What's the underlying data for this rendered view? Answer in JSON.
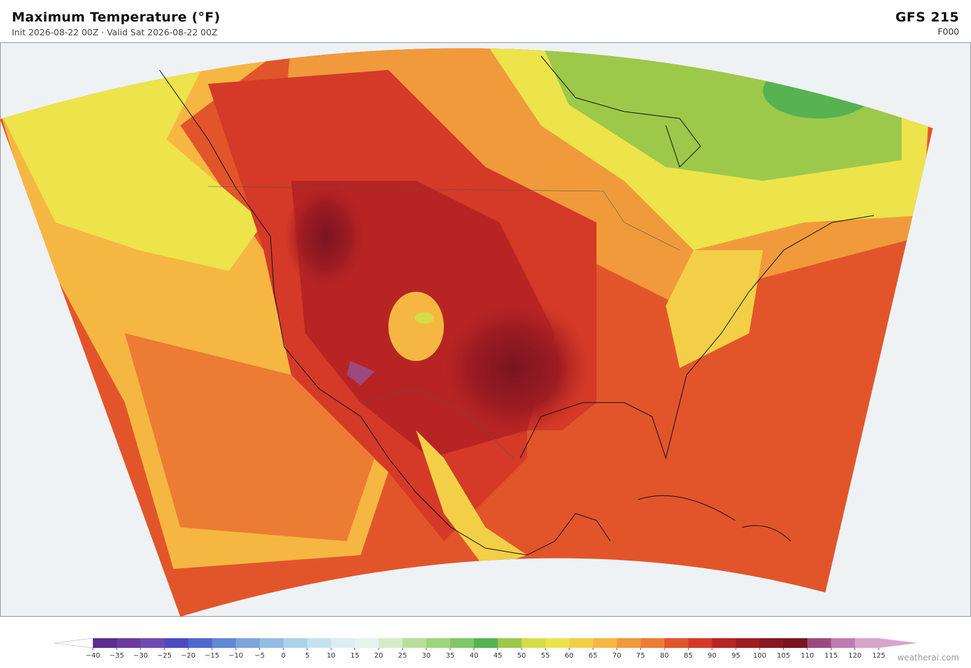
{
  "header": {
    "title": "Maximum Temperature  (°F)",
    "subtitle": "Init 2026-08-22 00Z   ·   Valid Sat 2026-08-22 00Z",
    "model": "GFS  215",
    "forecast_hour": "F000"
  },
  "colorbar": {
    "ticks": [
      {
        "value": -40,
        "label": "−40"
      },
      {
        "value": -35,
        "label": "−35"
      },
      {
        "value": -30,
        "label": "−30"
      },
      {
        "value": -25,
        "label": "−25"
      },
      {
        "value": -20,
        "label": "−20"
      },
      {
        "value": -15,
        "label": "−15"
      },
      {
        "value": -10,
        "label": "−10"
      },
      {
        "value": -5,
        "label": "−5"
      },
      0,
      5,
      10,
      15,
      20,
      25,
      30,
      35,
      40,
      45,
      50,
      55,
      60,
      65,
      70,
      75,
      80,
      85,
      90,
      95,
      100,
      105,
      110,
      115,
      120,
      125
    ],
    "colors": [
      "#5b2d8e",
      "#6b3a9e",
      "#6e4bb0",
      "#4b4bbf",
      "#5068cc",
      "#6288d6",
      "#7ea4dc",
      "#93bde2",
      "#a9d3ea",
      "#c3e3ef",
      "#d9eef3",
      "#e4f3ec",
      "#d5ecc8",
      "#b9e09a",
      "#9fd67c",
      "#7ec86a",
      "#57b252",
      "#9cc94a",
      "#d3dd4a",
      "#ece44a",
      "#f3cf47",
      "#f5b742",
      "#f09a3c",
      "#ec7c33",
      "#e2552b",
      "#d43a27",
      "#b82424",
      "#9e1c22",
      "#871820",
      "#7a1520",
      "#9c4a7e",
      "#c07ab3",
      "#d8a4cc"
    ],
    "under_color": "#ffffff",
    "over_color": "#d8a4cc"
  },
  "footer": {
    "watermark": "weatherai.com"
  }
}
